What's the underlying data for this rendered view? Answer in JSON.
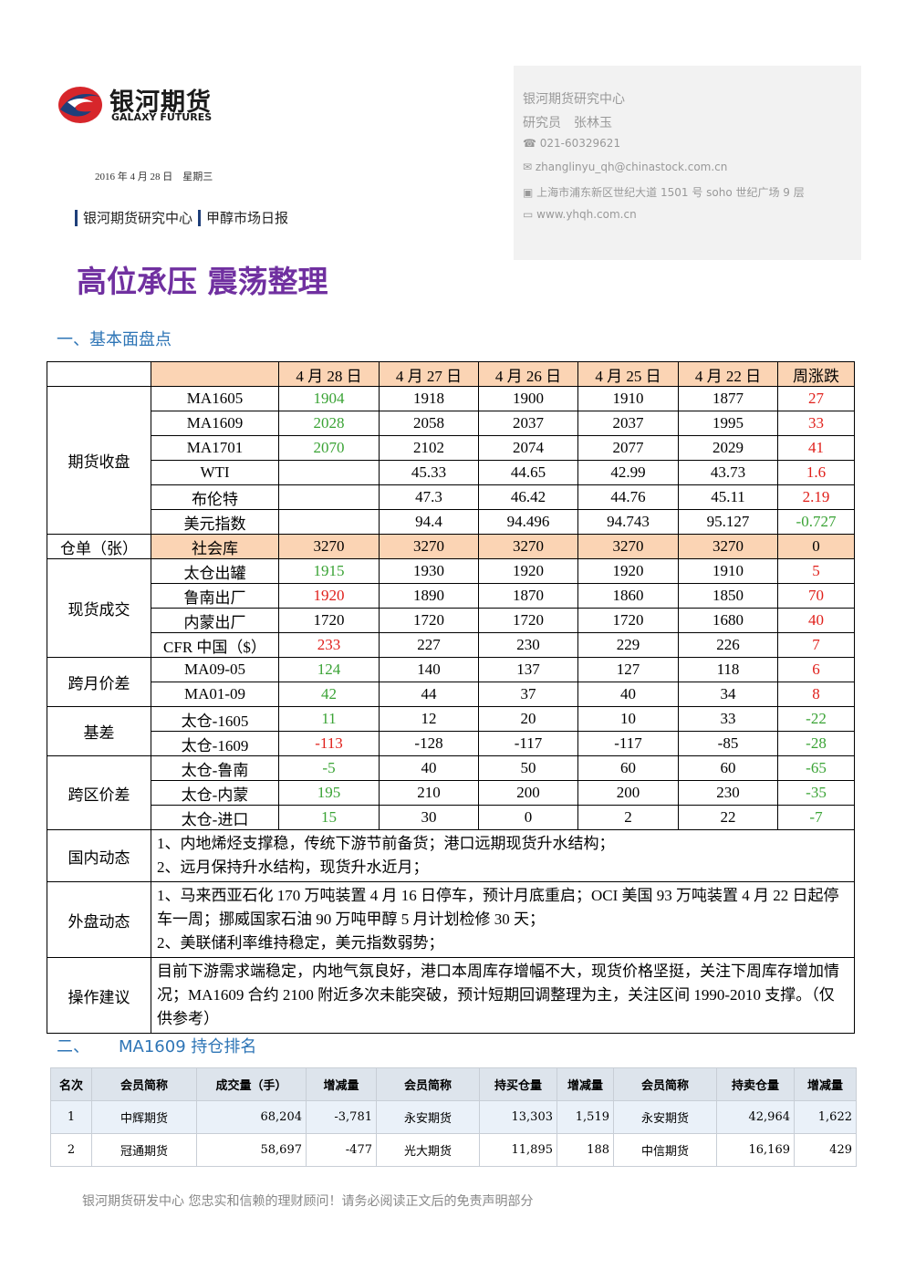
{
  "logo": {
    "name": "银河期货",
    "english": "GALAXY FUTURES"
  },
  "date": "2016 年 4 月 28 日　星期三",
  "tags": [
    "银河期货研究中心",
    "甲醇市场日报"
  ],
  "contact": {
    "org": "银河期货研究中心",
    "analyst": "研究员　张林玉",
    "phone": "021-60329621",
    "email": "zhanglinyu_qh@chinastock.com.cn",
    "address": "上海市浦东新区世纪大道 1501 号 soho 世纪广场 9 层",
    "website": "www.yhqh.com.cn"
  },
  "title": "高位承压 震荡整理",
  "section1": "一、基本面盘点",
  "table1": {
    "header": [
      "4 月 28 日",
      "4 月 27 日",
      "4 月 26 日",
      "4 月 25 日",
      "4 月 22 日",
      "周涨跌"
    ],
    "groups": [
      {
        "label": "期货收盘",
        "rows": [
          {
            "name": "MA1605",
            "cells": [
              "1904",
              "1918",
              "1900",
              "1910",
              "1877",
              "27"
            ]
          },
          {
            "name": "MA1609",
            "cells": [
              "2028",
              "2058",
              "2037",
              "2037",
              "1995",
              "33"
            ]
          },
          {
            "name": "MA1701",
            "cells": [
              "2070",
              "2102",
              "2074",
              "2077",
              "2029",
              "41"
            ]
          },
          {
            "name": "WTI",
            "cells": [
              null,
              "45.33",
              "44.65",
              "42.99",
              "43.73",
              "1.6"
            ]
          },
          {
            "name": "布伦特",
            "cells": [
              null,
              "47.3",
              "46.42",
              "44.76",
              "45.11",
              "2.19"
            ]
          },
          {
            "name": "美元指数",
            "cells": [
              null,
              "94.4",
              "94.496",
              "94.743",
              "95.127",
              "-0.727"
            ]
          }
        ]
      },
      {
        "label": "仓单（张）",
        "rows": [
          {
            "name": "社会库",
            "cells": [
              "3270",
              "3270",
              "3270",
              "3270",
              "3270",
              "0"
            ]
          }
        ]
      },
      {
        "label": "现货成交",
        "rows": [
          {
            "name": "太仓出罐",
            "cells": [
              "1915",
              "1930",
              "1920",
              "1920",
              "1910",
              "5"
            ]
          },
          {
            "name": "鲁南出厂",
            "cells": [
              "1920",
              "1890",
              "1870",
              "1860",
              "1850",
              "70"
            ]
          },
          {
            "name": "内蒙出厂",
            "cells": [
              "1720",
              "1720",
              "1720",
              "1720",
              "1680",
              "40"
            ]
          },
          {
            "name": "CFR 中国（$）",
            "cells": [
              "233",
              "227",
              "230",
              "229",
              "226",
              "7"
            ]
          }
        ]
      },
      {
        "label": "跨月价差",
        "rows": [
          {
            "name": "MA09-05",
            "cells": [
              "124",
              "140",
              "137",
              "127",
              "118",
              "6"
            ]
          },
          {
            "name": "MA01-09",
            "cells": [
              "42",
              "44",
              "37",
              "40",
              "34",
              "8"
            ]
          }
        ]
      },
      {
        "label": "基差",
        "rows": [
          {
            "name": "太仓-1605",
            "cells": [
              "11",
              "12",
              "20",
              "10",
              "33",
              "-22"
            ]
          },
          {
            "name": "太仓-1609",
            "cells": [
              "-113",
              "-128",
              "-117",
              "-117",
              "-85",
              "-28"
            ]
          }
        ]
      },
      {
        "label": "跨区价差",
        "rows": [
          {
            "name": "太仓-鲁南",
            "cells": [
              "-5",
              "40",
              "50",
              "60",
              "60",
              "-65"
            ]
          },
          {
            "name": "太仓-内蒙",
            "cells": [
              "195",
              "210",
              "200",
              "200",
              "230",
              "-35"
            ]
          },
          {
            "name": "太仓-进口",
            "cells": [
              "15",
              "30",
              "0",
              "2",
              "22",
              "-7"
            ]
          }
        ]
      }
    ],
    "notes": [
      {
        "label": "国内动态",
        "paragraphs": [
          "1、内地烯烃支撑稳，传统下游节前备货；港口远期现货升水结构；",
          "2、远月保持升水结构，现货升水近月；"
        ]
      },
      {
        "label": "外盘动态",
        "paragraphs": [
          "1、马来西亚石化 170 万吨装置 4 月 16 日停车，预计月底重启；OCI 美国 93 万吨装置 4 月 22 日起停车一周；挪威国家石油 90 万吨甲醇 5 月计划检修 30 天；",
          "2、美联储利率维持稳定，美元指数弱势；"
        ]
      },
      {
        "label": "操作建议",
        "paragraphs": [
          "目前下游需求端稳定，内地气氛良好，港口本周库存增幅不大，现货价格坚挺，关注下周库存增加情况；MA1609 合约 2100 附近多次未能突破，预计短期回调整理为主，关注区间 1990-2010 支撑。（仅供参考）"
        ]
      }
    ]
  },
  "section2": {
    "number": "二、",
    "title": "MA1609 持仓排名"
  },
  "table2": {
    "header": [
      "名次",
      "会员简称",
      "成交量（手）",
      "增减量",
      "会员简称",
      "持买仓量",
      "增减量",
      "会员简称",
      "持卖仓量",
      "增减量"
    ],
    "rows": [
      [
        "1",
        "中辉期货",
        "68,204",
        "-3,781",
        "永安期货",
        "13,303",
        "1,519",
        "永安期货",
        "42,964",
        "1,622"
      ],
      [
        "2",
        "冠通期货",
        "58,697",
        "-477",
        "光大期货",
        "11,895",
        "188",
        "中信期货",
        "16,169",
        "429"
      ]
    ]
  },
  "footer": "银河期货研发中心 您忠实和信赖的理财顾问！请务必阅读正文后的免责声明部分"
}
